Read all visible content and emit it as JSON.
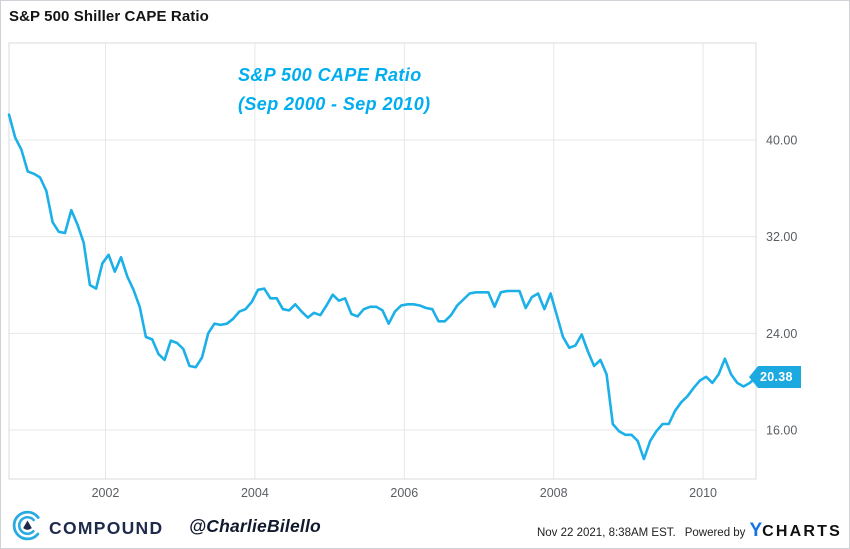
{
  "page": {
    "title": "S&P 500 Shiller CAPE Ratio"
  },
  "annotation": {
    "line1": "S&P 500 CAPE Ratio",
    "line2": "(Sep 2000 - Sep 2010)",
    "color": "#00AEEF"
  },
  "last_value_badge": {
    "label": "20.38",
    "color": "#1BA9E0"
  },
  "footer": {
    "brand": "COMPOUND",
    "handle": "@CharlieBilello",
    "timestamp": "Nov 22 2021, 8:38AM EST.",
    "powered_by": "Powered by",
    "ycharts_y": "Y",
    "ycharts_rest": "CHARTS"
  },
  "colors": {
    "line": "#1CB0E8",
    "annotation_cyan": "#00AEEF",
    "badge_cyan": "#1BA9E0",
    "logo_cyan": "#29ABE2",
    "navy": "#1E2A4A",
    "ycharts_blue": "#1473E6",
    "grid": "#E5E7E9",
    "plot_border": "#D8DBDE",
    "axis_text": "#5A5E63"
  },
  "chart_data": {
    "type": "line",
    "title": "S&P 500 Shiller CAPE Ratio",
    "x_start": "Sep 2000",
    "x_end": "Sep 2010",
    "frequency": "monthly",
    "x_tick_labels": [
      "2002",
      "2004",
      "2006",
      "2008",
      "2010"
    ],
    "y_tick_labels": [
      "40.00",
      "32.00",
      "24.00",
      "16.00"
    ],
    "y_ticks": [
      40,
      32,
      24,
      16
    ],
    "ylim_displayed": [
      11.9,
      48.1
    ],
    "grid": true,
    "legend": false,
    "last_value": 20.38,
    "values": [
      42.1,
      40.2,
      39.2,
      37.4,
      37.2,
      36.9,
      35.8,
      33.2,
      32.4,
      32.3,
      34.2,
      33.0,
      31.5,
      28.0,
      27.7,
      29.8,
      30.5,
      29.1,
      30.3,
      28.7,
      27.6,
      26.2,
      23.7,
      23.5,
      22.3,
      21.8,
      23.4,
      23.2,
      22.7,
      21.3,
      21.2,
      22.0,
      24.0,
      24.8,
      24.7,
      24.8,
      25.2,
      25.8,
      26.0,
      26.6,
      27.6,
      27.7,
      26.9,
      26.9,
      26.0,
      25.9,
      26.4,
      25.8,
      25.3,
      25.7,
      25.5,
      26.3,
      27.2,
      26.7,
      26.9,
      25.6,
      25.4,
      26.0,
      26.2,
      26.2,
      25.9,
      24.8,
      25.8,
      26.3,
      26.4,
      26.4,
      26.3,
      26.1,
      26.0,
      25.0,
      25.0,
      25.5,
      26.3,
      26.8,
      27.3,
      27.4,
      27.4,
      27.4,
      26.2,
      27.4,
      27.5,
      27.5,
      27.5,
      26.1,
      27.0,
      27.3,
      26.0,
      27.3,
      25.5,
      23.7,
      22.8,
      23.0,
      23.9,
      22.5,
      21.3,
      21.8,
      20.6,
      16.5,
      15.9,
      15.6,
      15.6,
      15.1,
      13.6,
      15.1,
      15.9,
      16.5,
      16.5,
      17.6,
      18.3,
      18.8,
      19.5,
      20.1,
      20.4,
      19.9,
      20.6,
      21.9,
      20.6,
      19.9,
      19.6,
      19.9,
      20.38
    ]
  }
}
